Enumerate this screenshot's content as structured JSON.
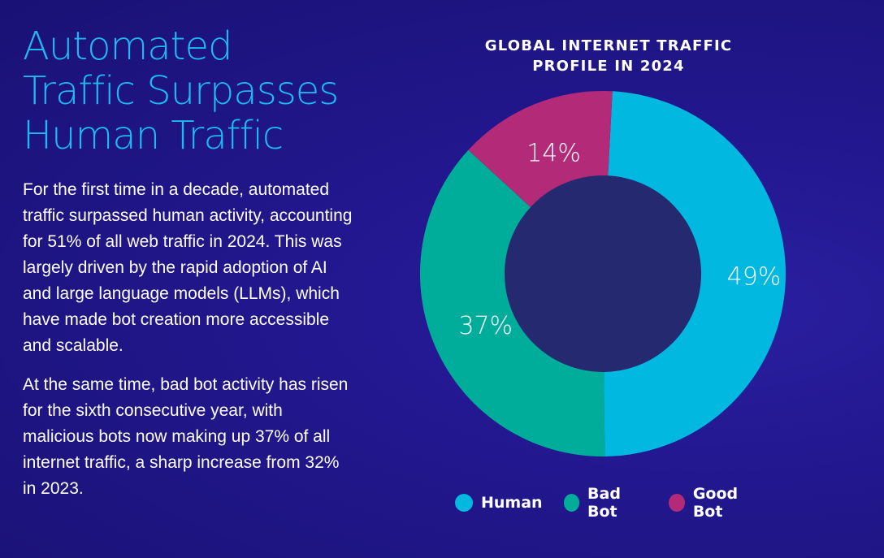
{
  "headline": {
    "lines": [
      "Automated",
      "Traffic Surpasses",
      "Human Traffic"
    ]
  },
  "body": {
    "paragraphs": [
      "For the first time in a decade, automated traffic surpassed human activity, accounting for 51% of all web traffic in 2024. This was largely driven by the rapid adoption of AI and large language models (LLMs), which have made bot creation more accessible and scalable.",
      "At the same time, bad bot activity has risen for the sixth consecutive year, with malicious bots now making up 37% of all internet traffic, a sharp increase from 32% in 2023."
    ]
  },
  "colors": {
    "headline": "#1fb8f0",
    "human": "#00b8e0",
    "bad_bot": "#00ad9a",
    "good_bot": "#b22a78",
    "hole": "#252a70"
  },
  "chart_data": {
    "type": "pie",
    "variant": "donut",
    "title_lines": [
      "GLOBAL INTERNET TRAFFIC",
      "PROFILE IN 2024"
    ],
    "categories": [
      "Human",
      "Bad Bot",
      "Good Bot"
    ],
    "values": [
      49,
      37,
      14
    ],
    "labels": [
      "49%",
      "37%",
      "14%"
    ],
    "legend_position": "bottom"
  }
}
